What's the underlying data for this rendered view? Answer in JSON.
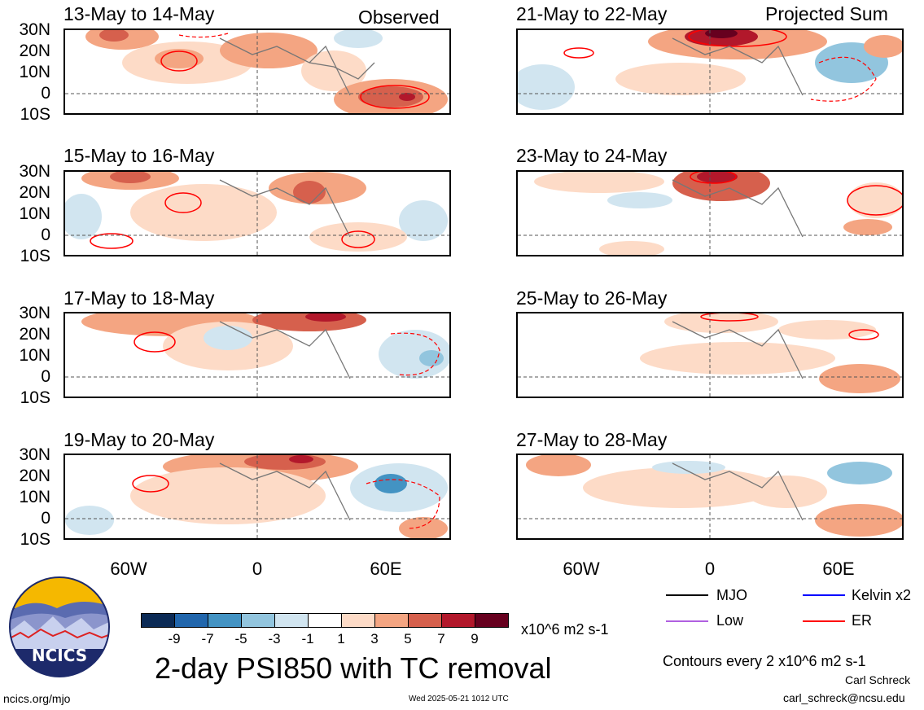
{
  "header": {
    "left_tag": "Observed",
    "right_tag": "Projected Sum"
  },
  "panels_left": [
    {
      "title": "13-May to 14-May"
    },
    {
      "title": "15-May to 16-May"
    },
    {
      "title": "17-May to 18-May"
    },
    {
      "title": "19-May to 20-May"
    }
  ],
  "panels_right": [
    {
      "title": "21-May to 22-May"
    },
    {
      "title": "23-May to 24-May"
    },
    {
      "title": "25-May to 26-May"
    },
    {
      "title": "27-May to 28-May"
    }
  ],
  "lat_labels": [
    "30N",
    "20N",
    "10N",
    "0",
    "10S"
  ],
  "lon_labels": [
    "60W",
    "0",
    "60E"
  ],
  "colorbar": {
    "ticks": [
      "-9",
      "-7",
      "-5",
      "-3",
      "-1",
      "1",
      "3",
      "5",
      "7",
      "9"
    ],
    "colors": [
      "#0b2a55",
      "#2166ac",
      "#4393c3",
      "#92c5de",
      "#d1e5f0",
      "#ffffff",
      "#fddbc7",
      "#f4a582",
      "#d6604d",
      "#b2182b",
      "#67001f"
    ],
    "units": "x10^6 m2 s-1"
  },
  "main_title": "2-day PSI850 with TC removal",
  "legend": {
    "items": [
      {
        "label": "MJO",
        "color": "#000000"
      },
      {
        "label": "Kelvin x2",
        "color": "#0000ff"
      },
      {
        "label": "Low",
        "color": "#b060e0"
      },
      {
        "label": "ER",
        "color": "#ff0000"
      }
    ],
    "contour_note": "Contours every 2 x10^6 m2 s-1"
  },
  "footer": {
    "website": "ncics.org/mjo",
    "timestamp": "Wed 2025-05-21 1012 UTC",
    "author": "Carl Schreck",
    "email": "carl_schreck@ncsu.edu"
  },
  "logo": {
    "text": "NCICS"
  }
}
